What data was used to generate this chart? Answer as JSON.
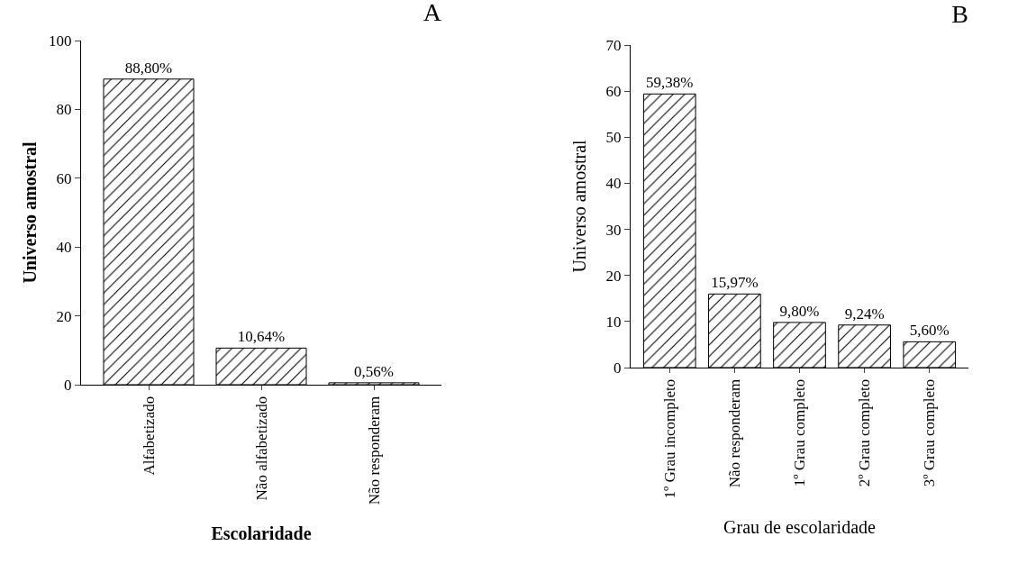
{
  "chart_data": [
    {
      "type": "bar",
      "title": "A",
      "xlabel": "Escolaridade",
      "ylabel": "Universo amostral",
      "categories": [
        "Alfabetizado",
        "Não alfabetizado",
        "Não responderam"
      ],
      "series": [
        {
          "color": "#000000",
          "values": [
            88.8,
            10.64,
            0.56
          ],
          "value_labels": [
            "88,80%",
            "10,64%",
            "0,56%"
          ]
        }
      ],
      "ylim": [
        0,
        100
      ],
      "yticks": [
        0,
        20,
        40,
        60,
        80,
        100
      ],
      "grid": false
    },
    {
      "type": "bar",
      "title": "B",
      "xlabel": "Grau de escolaridade",
      "ylabel": "Universo amostral",
      "categories": [
        "1º Grau incompleto",
        "Não responderam",
        "1º Grau completo",
        "2º Grau completo",
        "3º Grau completo"
      ],
      "series": [
        {
          "color": "#000000",
          "values": [
            59.38,
            15.97,
            9.8,
            9.24,
            5.6
          ],
          "value_labels": [
            "59,38%",
            "15,97%",
            "9,80%",
            "9,24%",
            "5,60%"
          ]
        }
      ],
      "ylim": [
        0,
        70
      ],
      "yticks": [
        0,
        10,
        20,
        30,
        40,
        50,
        60,
        70
      ],
      "grid": false
    }
  ]
}
